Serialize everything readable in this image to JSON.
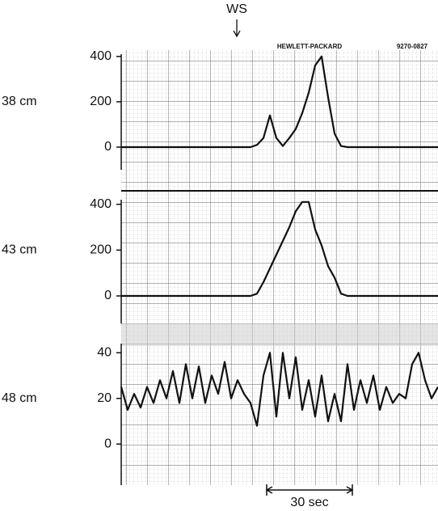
{
  "chart_data": [
    {
      "type": "line",
      "ylabel": "38 cm",
      "marker": "WS",
      "brand": "HEWLETT-PACKARD",
      "code": "9270-0827",
      "color": "#111",
      "ylim": [
        -100,
        410
      ],
      "yticks": [
        0,
        200,
        400
      ],
      "values": [
        0,
        0,
        0,
        0,
        0,
        0,
        0,
        0,
        0,
        0,
        0,
        0,
        0,
        0,
        0,
        0,
        0,
        0,
        0,
        0,
        0,
        10,
        40,
        140,
        40,
        5,
        40,
        80,
        150,
        240,
        360,
        400,
        220,
        60,
        5,
        0,
        0,
        0,
        0,
        0,
        0,
        0,
        0,
        0,
        0,
        0,
        0,
        0,
        0,
        0
      ]
    },
    {
      "type": "line",
      "ylabel": "43 cm",
      "color": "#111",
      "ylim": [
        -120,
        420
      ],
      "yticks": [
        0,
        200,
        400
      ],
      "values": [
        0,
        0,
        0,
        0,
        0,
        0,
        0,
        0,
        0,
        0,
        0,
        0,
        0,
        0,
        0,
        0,
        0,
        0,
        0,
        0,
        0,
        10,
        60,
        120,
        180,
        240,
        300,
        370,
        410,
        410,
        290,
        220,
        130,
        80,
        10,
        0,
        0,
        0,
        0,
        0,
        0,
        0,
        0,
        0,
        0,
        0,
        0,
        0,
        0,
        0
      ]
    },
    {
      "type": "line",
      "ylabel": "48 cm",
      "scale_bar": "30 sec",
      "color": "#111",
      "ylim": [
        -18,
        44
      ],
      "yticks": [
        0,
        20,
        40
      ],
      "values": [
        25,
        15,
        22,
        16,
        25,
        18,
        28,
        20,
        32,
        18,
        35,
        20,
        34,
        18,
        30,
        22,
        36,
        20,
        28,
        22,
        18,
        8,
        30,
        40,
        12,
        40,
        20,
        38,
        15,
        28,
        12,
        30,
        10,
        22,
        10,
        35,
        15,
        28,
        18,
        30,
        15,
        25,
        18,
        22,
        20,
        35,
        40,
        28,
        20,
        25
      ]
    }
  ]
}
